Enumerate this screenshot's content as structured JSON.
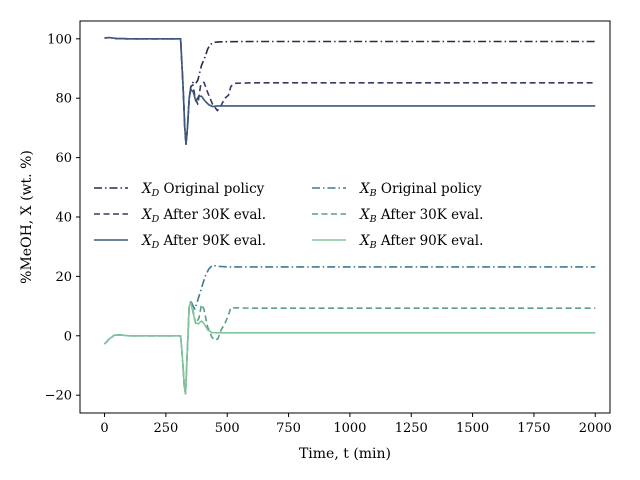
{
  "chart_data": {
    "type": "line",
    "title": "",
    "xlabel": "Time, t (min)",
    "ylabel": "%MeOH, X (wt. %)",
    "xlim": [
      -100,
      2060
    ],
    "ylim": [
      -26,
      106
    ],
    "xticks": [
      0,
      250,
      500,
      750,
      1000,
      1250,
      1500,
      1750,
      2000
    ],
    "yticks": [
      -20,
      0,
      20,
      40,
      60,
      80,
      100
    ],
    "grid": false,
    "legend_position": "center-left",
    "series": [
      {
        "name": "X_D Original policy",
        "color": "#2b2a4c",
        "dash": "dashdot",
        "points": [
          [
            0,
            100.3
          ],
          [
            20,
            100.4
          ],
          [
            50,
            100.1
          ],
          [
            100,
            100
          ],
          [
            200,
            100
          ],
          [
            310,
            100
          ],
          [
            320,
            84
          ],
          [
            327,
            70
          ],
          [
            332,
            64.5
          ],
          [
            338,
            70
          ],
          [
            345,
            80
          ],
          [
            352,
            84
          ],
          [
            360,
            85.3
          ],
          [
            370,
            84.8
          ],
          [
            380,
            86
          ],
          [
            395,
            91
          ],
          [
            410,
            94
          ],
          [
            420,
            96.5
          ],
          [
            430,
            98
          ],
          [
            445,
            98.8
          ],
          [
            470,
            99
          ],
          [
            600,
            99.1
          ],
          [
            1000,
            99.1
          ],
          [
            2000,
            99.1
          ]
        ]
      },
      {
        "name": "X_D After 30K eval.",
        "color": "#353a6b",
        "dash": "dashed",
        "points": [
          [
            0,
            100.3
          ],
          [
            20,
            100.4
          ],
          [
            50,
            100.1
          ],
          [
            100,
            100
          ],
          [
            200,
            100
          ],
          [
            310,
            100
          ],
          [
            320,
            84
          ],
          [
            327,
            70
          ],
          [
            332,
            64.5
          ],
          [
            338,
            70
          ],
          [
            345,
            80
          ],
          [
            352,
            84
          ],
          [
            360,
            84.5
          ],
          [
            370,
            80
          ],
          [
            380,
            78
          ],
          [
            392,
            84.5
          ],
          [
            405,
            85.4
          ],
          [
            420,
            82
          ],
          [
            440,
            78
          ],
          [
            460,
            75.8
          ],
          [
            475,
            77.5
          ],
          [
            490,
            80
          ],
          [
            505,
            81
          ],
          [
            515,
            84
          ],
          [
            530,
            85
          ],
          [
            600,
            85.2
          ],
          [
            1000,
            85.2
          ],
          [
            2000,
            85.2
          ]
        ]
      },
      {
        "name": "X_D After 90K eval.",
        "color": "#3d5878",
        "dash": "solid",
        "points": [
          [
            0,
            100.3
          ],
          [
            20,
            100.4
          ],
          [
            50,
            100.1
          ],
          [
            100,
            100
          ],
          [
            200,
            100
          ],
          [
            310,
            100
          ],
          [
            320,
            84
          ],
          [
            327,
            70
          ],
          [
            332,
            64.5
          ],
          [
            338,
            70
          ],
          [
            345,
            80
          ],
          [
            352,
            83
          ],
          [
            362,
            82
          ],
          [
            372,
            79
          ],
          [
            382,
            80.5
          ],
          [
            395,
            80.7
          ],
          [
            410,
            79
          ],
          [
            425,
            77.8
          ],
          [
            440,
            77.2
          ],
          [
            460,
            77.4
          ],
          [
            500,
            77.4
          ],
          [
            2000,
            77.4
          ]
        ]
      },
      {
        "name": "X_B Original policy",
        "color": "#3e7a92",
        "dash": "dashdot",
        "points": [
          [
            0,
            -2.8
          ],
          [
            20,
            -1
          ],
          [
            40,
            0.2
          ],
          [
            60,
            0.3
          ],
          [
            100,
            0
          ],
          [
            200,
            0
          ],
          [
            310,
            0
          ],
          [
            318,
            -8
          ],
          [
            325,
            -17
          ],
          [
            330,
            -19.5
          ],
          [
            336,
            -8
          ],
          [
            345,
            10
          ],
          [
            352,
            11.8
          ],
          [
            358,
            10.5
          ],
          [
            368,
            9
          ],
          [
            380,
            12
          ],
          [
            395,
            16
          ],
          [
            410,
            20
          ],
          [
            425,
            22.5
          ],
          [
            440,
            23.8
          ],
          [
            460,
            23.4
          ],
          [
            500,
            23.2
          ],
          [
            1000,
            23.2
          ],
          [
            2000,
            23.2
          ]
        ]
      },
      {
        "name": "X_B After 30K eval.",
        "color": "#5b9d88",
        "dash": "dashed",
        "points": [
          [
            0,
            -2.8
          ],
          [
            20,
            -1
          ],
          [
            40,
            0.2
          ],
          [
            60,
            0.3
          ],
          [
            100,
            0
          ],
          [
            200,
            0
          ],
          [
            310,
            0
          ],
          [
            318,
            -8
          ],
          [
            325,
            -17
          ],
          [
            330,
            -19.5
          ],
          [
            336,
            -8
          ],
          [
            345,
            10
          ],
          [
            352,
            11.5
          ],
          [
            362,
            8
          ],
          [
            372,
            4
          ],
          [
            385,
            6
          ],
          [
            395,
            10.5
          ],
          [
            405,
            9
          ],
          [
            420,
            3
          ],
          [
            438,
            -0.5
          ],
          [
            450,
            -1.5
          ],
          [
            462,
            -1
          ],
          [
            475,
            2
          ],
          [
            490,
            4
          ],
          [
            505,
            7
          ],
          [
            515,
            9.5
          ],
          [
            530,
            9.4
          ],
          [
            600,
            9.3
          ],
          [
            1000,
            9.3
          ],
          [
            2000,
            9.3
          ]
        ]
      },
      {
        "name": "X_B After 90K eval.",
        "color": "#82c49a",
        "dash": "solid",
        "points": [
          [
            0,
            -2.8
          ],
          [
            20,
            -1
          ],
          [
            40,
            0.2
          ],
          [
            60,
            0.3
          ],
          [
            100,
            0
          ],
          [
            200,
            0
          ],
          [
            310,
            0
          ],
          [
            318,
            -8
          ],
          [
            325,
            -17
          ],
          [
            330,
            -19.5
          ],
          [
            336,
            -8
          ],
          [
            345,
            10
          ],
          [
            352,
            11
          ],
          [
            360,
            8
          ],
          [
            370,
            4.5
          ],
          [
            382,
            4
          ],
          [
            395,
            5
          ],
          [
            408,
            3.8
          ],
          [
            420,
            2
          ],
          [
            438,
            1.1
          ],
          [
            460,
            1
          ],
          [
            500,
            1
          ],
          [
            2000,
            1
          ]
        ]
      }
    ]
  }
}
